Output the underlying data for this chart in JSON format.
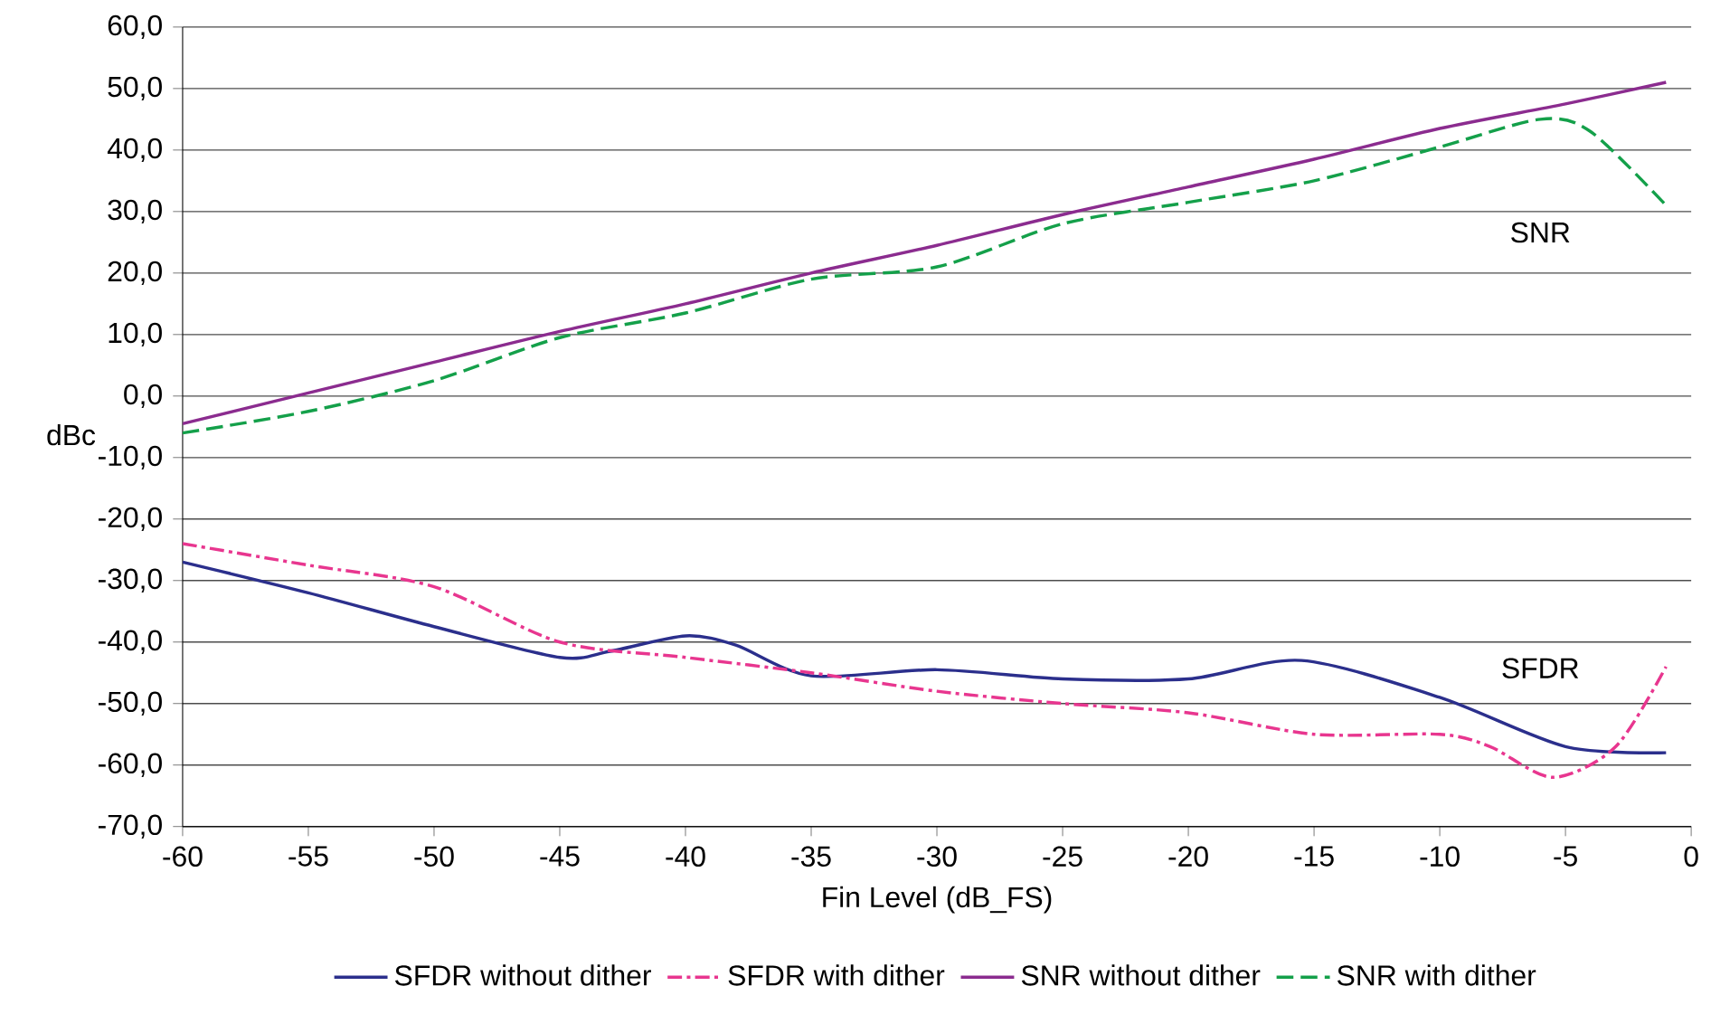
{
  "chart_data": {
    "type": "line",
    "xlabel": "Fin Level (dB_FS)",
    "ylabel": "dBc",
    "xlim": [
      -60,
      0
    ],
    "xticks": [
      -60,
      -55,
      -50,
      -45,
      -40,
      -35,
      -30,
      -25,
      -20,
      -15,
      -10,
      -5,
      0
    ],
    "ylim": [
      -70,
      60
    ],
    "yticks": [
      {
        "value": -70,
        "label": "-70,0"
      },
      {
        "value": -60,
        "label": "-60,0"
      },
      {
        "value": -50,
        "label": "-50,0"
      },
      {
        "value": -40,
        "label": "-40,0"
      },
      {
        "value": -30,
        "label": "-30,0"
      },
      {
        "value": -20,
        "label": "-20,0"
      },
      {
        "value": -10,
        "label": "-10,0"
      },
      {
        "value": 0,
        "label": "0,0"
      },
      {
        "value": 10,
        "label": "10,0"
      },
      {
        "value": 20,
        "label": "20,0"
      },
      {
        "value": 30,
        "label": "30,0"
      },
      {
        "value": 40,
        "label": "40,0"
      },
      {
        "value": 50,
        "label": "50,0"
      },
      {
        "value": 60,
        "label": "60,0"
      }
    ],
    "grid": "y",
    "legend": "bottom",
    "marker": "none",
    "annotations": [
      "SNR",
      "SFDR"
    ],
    "series": [
      {
        "name": "SFDR without dither",
        "color": "#2b2f8c",
        "line_style": "solid",
        "x": [
          -60,
          -55,
          -50,
          -45,
          -43,
          -40,
          -38,
          -35,
          -30,
          -25,
          -20,
          -15.5,
          -10,
          -5,
          -1
        ],
        "values": [
          -27,
          -32,
          -37.5,
          -42.5,
          -41.5,
          -39,
          -40.5,
          -45.5,
          -44.5,
          -46,
          -46,
          -43,
          -49,
          -57,
          -58
        ]
      },
      {
        "name": "SFDR with dither",
        "color": "#e8368f",
        "line_style": "dashdot",
        "x": [
          -60,
          -55,
          -50,
          -45,
          -40,
          -35,
          -30,
          -25,
          -20,
          -15,
          -10,
          -8,
          -5.5,
          -3,
          -1
        ],
        "values": [
          -24,
          -27.5,
          -31,
          -40,
          -42.5,
          -45,
          -48,
          -50,
          -51.5,
          -55,
          -55,
          -57,
          -62,
          -57,
          -44
        ]
      },
      {
        "name": "SNR without dither",
        "color": "#8b2c8f",
        "line_style": "solid",
        "x": [
          -60,
          -55,
          -50,
          -45,
          -40,
          -35,
          -30,
          -25,
          -20,
          -15,
          -10,
          -5,
          -1
        ],
        "values": [
          -4.5,
          0.5,
          5.5,
          10.5,
          15,
          20,
          24.5,
          29.5,
          34,
          38.5,
          43.5,
          47.5,
          51
        ]
      },
      {
        "name": "SNR with dither",
        "color": "#14a04a",
        "line_style": "dashed",
        "x": [
          -60,
          -55,
          -50,
          -45,
          -40,
          -35,
          -30,
          -25,
          -20,
          -15,
          -10,
          -6,
          -4,
          -1
        ],
        "values": [
          -6,
          -2.5,
          2.5,
          9.5,
          13.5,
          19,
          21,
          28,
          31.5,
          35,
          40.5,
          45,
          43,
          31
        ]
      }
    ]
  }
}
